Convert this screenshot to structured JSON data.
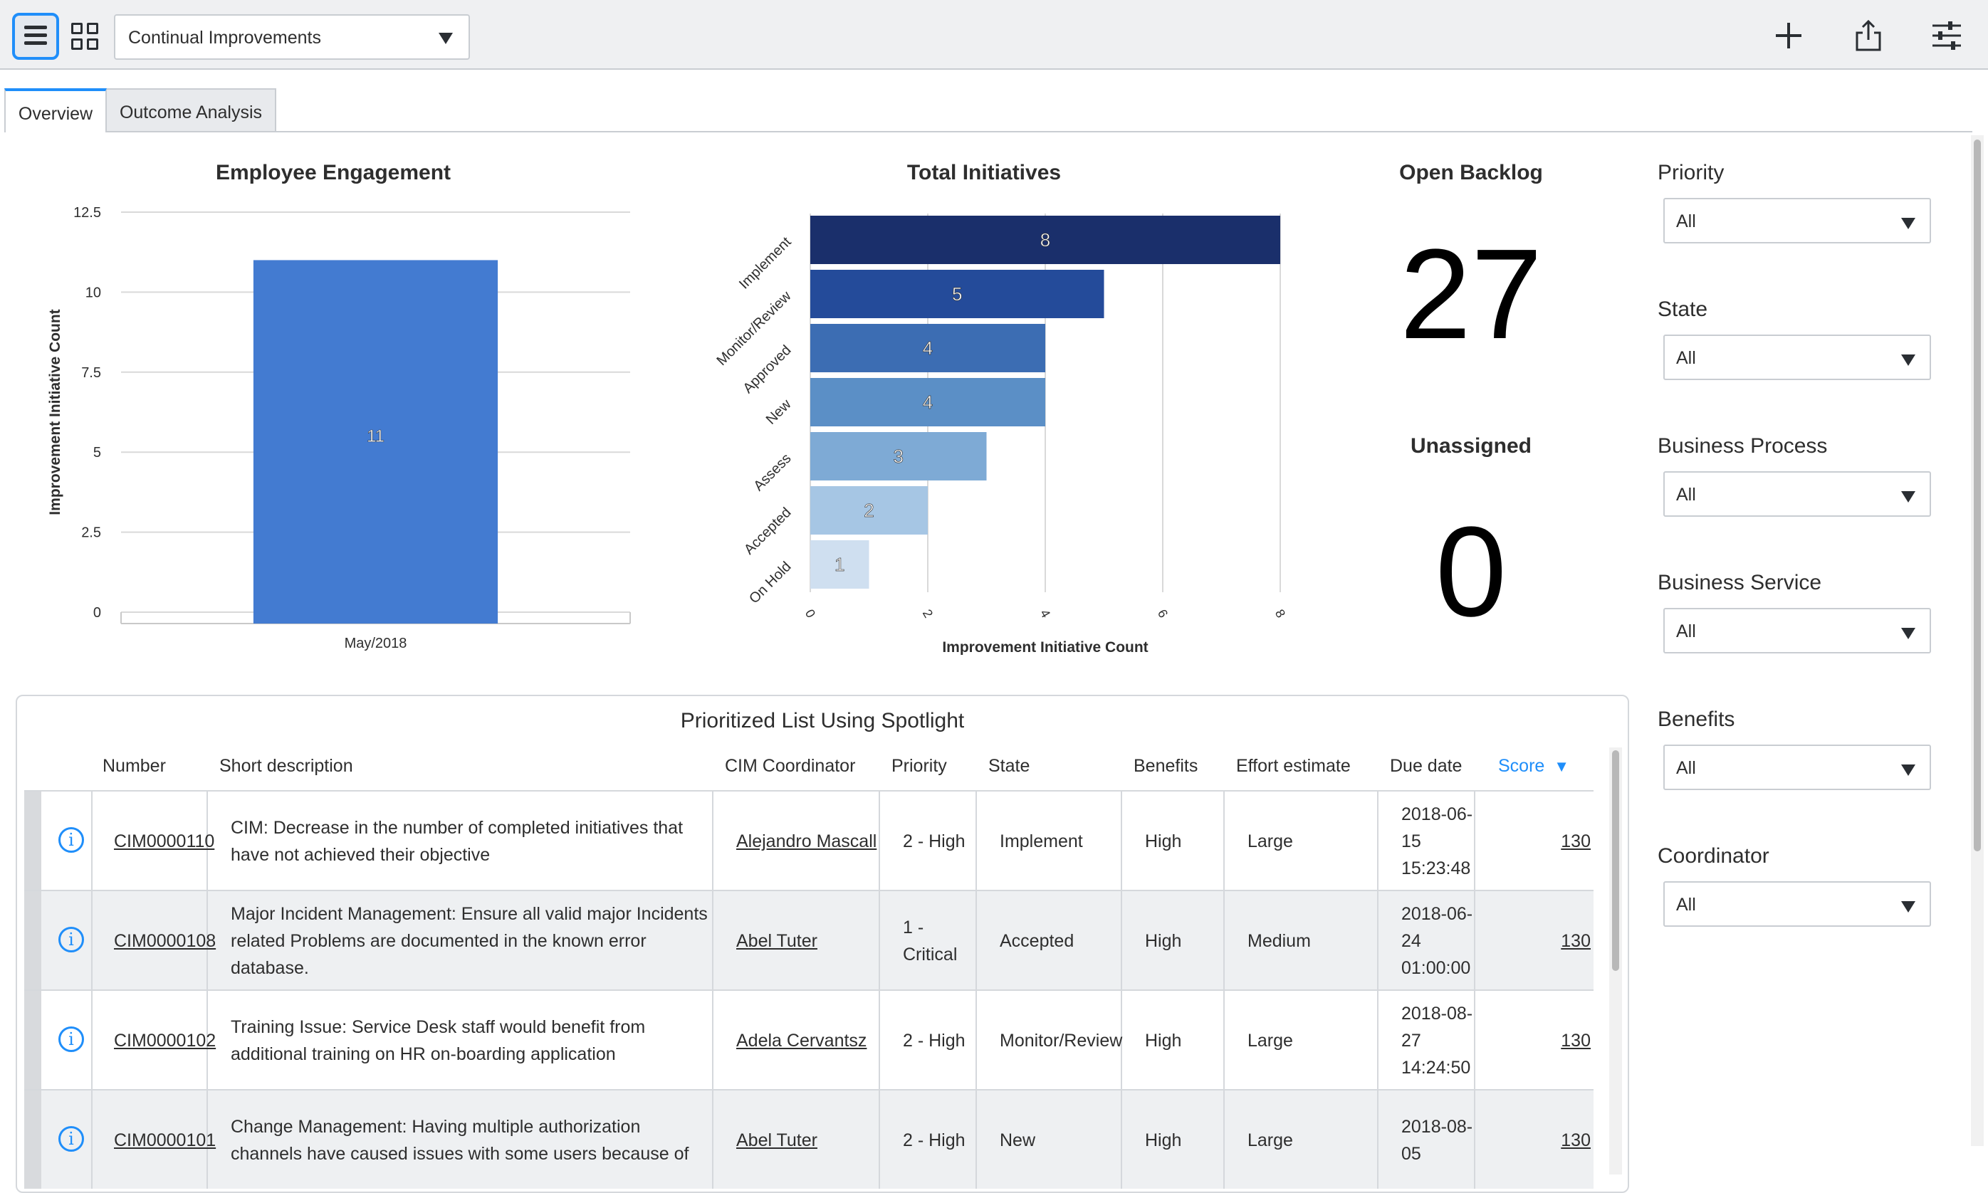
{
  "toolbar": {
    "menu_icon": "hamburger-menu-icon",
    "layout_icon": "grid-layout-icon",
    "dashboard_select": "Continual Improvements",
    "add_icon": "plus-icon",
    "share_icon": "share-icon",
    "settings_icon": "sliders-icon"
  },
  "tabs": [
    {
      "label": "Overview",
      "active": true
    },
    {
      "label": "Outcome Analysis",
      "active": false
    }
  ],
  "widgets": {
    "employee_engagement": {
      "title": "Employee Engagement"
    },
    "total_initiatives": {
      "title": "Total Initiatives"
    },
    "open_backlog": {
      "title": "Open Backlog",
      "value": "27"
    },
    "unassigned": {
      "title": "Unassigned",
      "value": "0"
    }
  },
  "chart_data": [
    {
      "type": "bar",
      "title": "Employee Engagement",
      "ylabel": "Improvement Initiative Count",
      "xlabel": "",
      "categories": [
        "May/2018"
      ],
      "values": [
        11
      ],
      "ylim": [
        0,
        12.5
      ],
      "yticks": [
        "0",
        "2.5",
        "5",
        "7.5",
        "10",
        "12.5"
      ],
      "color": "#437bd1",
      "grid": true
    },
    {
      "type": "bar",
      "orientation": "horizontal",
      "title": "Total Initiatives",
      "xlabel": "Improvement Initiative Count",
      "categories": [
        "Implement",
        "Monitor/Review",
        "Approved",
        "New",
        "Assess",
        "Accepted",
        "On Hold"
      ],
      "values": [
        8,
        5,
        4,
        4,
        3,
        2,
        1
      ],
      "colors": [
        "#1a2f6b",
        "#244b9a",
        "#3c6db3",
        "#5b8fc6",
        "#7eaad5",
        "#a6c6e4",
        "#cfdff0"
      ],
      "xlim": [
        0,
        8
      ],
      "xticks": [
        "0",
        "2",
        "4",
        "6",
        "8"
      ],
      "grid": true
    }
  ],
  "filters": [
    {
      "title": "Priority",
      "value": "All"
    },
    {
      "title": "State",
      "value": "All"
    },
    {
      "title": "Business Process",
      "value": "All"
    },
    {
      "title": "Business Service",
      "value": "All"
    },
    {
      "title": "Benefits",
      "value": "All"
    },
    {
      "title": "Coordinator",
      "value": "All"
    }
  ],
  "list": {
    "title": "Prioritized List Using Spotlight",
    "columns": [
      "Number",
      "Short description",
      "CIM Coordinator",
      "Priority",
      "State",
      "Benefits",
      "Effort estimate",
      "Due date",
      "Score"
    ],
    "sort_indicator": "▼",
    "rows": [
      {
        "number": "CIM0000110",
        "desc1": "CIM: Decrease in the number of completed initiatives that",
        "desc2": "have not achieved their objective",
        "desc3": "",
        "coordinator": "Alejandro Mascall",
        "priority1": "2 - High",
        "priority2": "",
        "state": "Implement",
        "benefits": "High",
        "effort": "Large",
        "due1": "2018-06-",
        "due2": "15",
        "due3": "15:23:48",
        "score": "130"
      },
      {
        "number": "CIM0000108",
        "desc1": "Major Incident Management: Ensure all valid major Incidents",
        "desc2": "related Problems are documented in the known error",
        "desc3": "database.",
        "coordinator": "Abel Tuter",
        "priority1": "1 -",
        "priority2": "Critical",
        "state": "Accepted",
        "benefits": "High",
        "effort": "Medium",
        "due1": "2018-06-",
        "due2": "24",
        "due3": "01:00:00",
        "score": "130"
      },
      {
        "number": "CIM0000102",
        "desc1": "Training Issue: Service Desk staff would benefit from",
        "desc2": "additional training on HR on-boarding application",
        "desc3": "",
        "coordinator": "Adela Cervantsz",
        "priority1": "2 - High",
        "priority2": "",
        "state": "Monitor/Review",
        "benefits": "High",
        "effort": "Large",
        "due1": "2018-08-",
        "due2": "27",
        "due3": "14:24:50",
        "score": "130"
      },
      {
        "number": "CIM0000101",
        "desc1": "Change Management: Having multiple authorization",
        "desc2": "channels have caused issues with some users because of",
        "desc3": "",
        "coordinator": "Abel Tuter",
        "priority1": "2 - High",
        "priority2": "",
        "state": "New",
        "benefits": "High",
        "effort": "Large",
        "due1": "2018-08-",
        "due2": "05",
        "due3": "",
        "score": "130"
      }
    ]
  }
}
